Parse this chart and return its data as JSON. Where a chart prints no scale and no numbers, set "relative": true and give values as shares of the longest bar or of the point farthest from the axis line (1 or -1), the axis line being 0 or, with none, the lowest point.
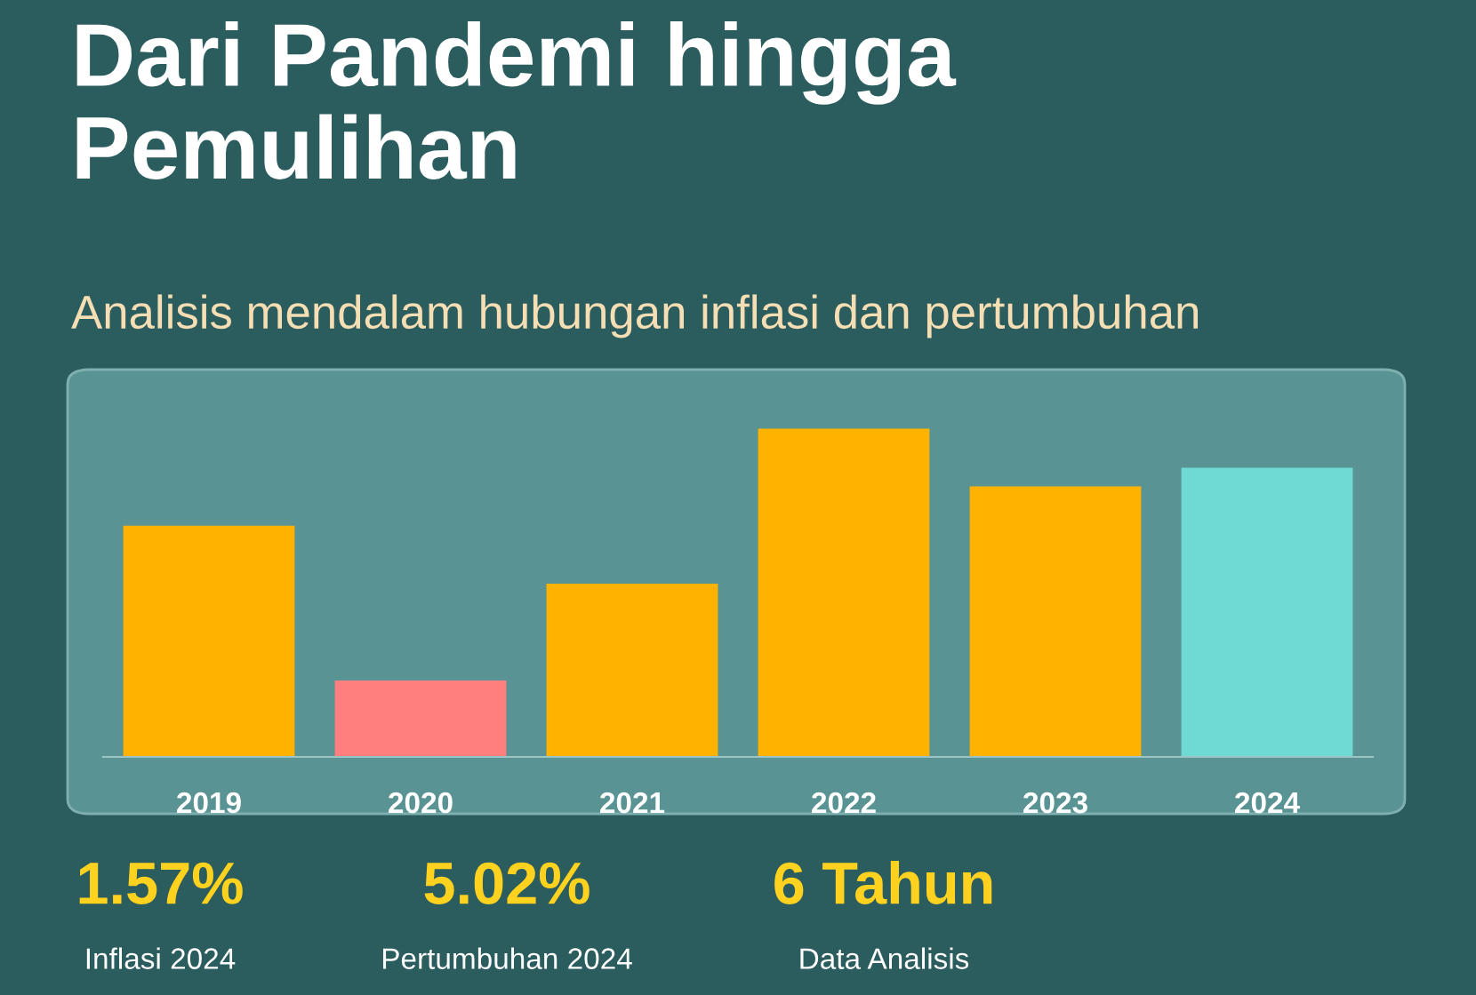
{
  "chart_data": {
    "type": "bar",
    "title": "Dari Pandemi hingga\nPemulihan",
    "subtitle": "Analisis mendalam hubungan inflasi dan pertumbuhan",
    "categories": [
      "2019",
      "2020",
      "2021",
      "2022",
      "2023",
      "2024"
    ],
    "values": [
      0.704,
      0.233,
      0.528,
      1,
      0.824,
      0.881
    ],
    "colors": [
      "#ffb300",
      "#ff7f7f",
      "#ffb300",
      "#ffb300",
      "#ffb300",
      "#6fd9d3"
    ],
    "relative": true,
    "grid": false,
    "legend": false,
    "annotations": [
      "1.57%",
      "Inflasi 2024",
      "5.02%",
      "Pertumbuhan 2024",
      "6 Tahun",
      "Data Analisis"
    ]
  }
}
